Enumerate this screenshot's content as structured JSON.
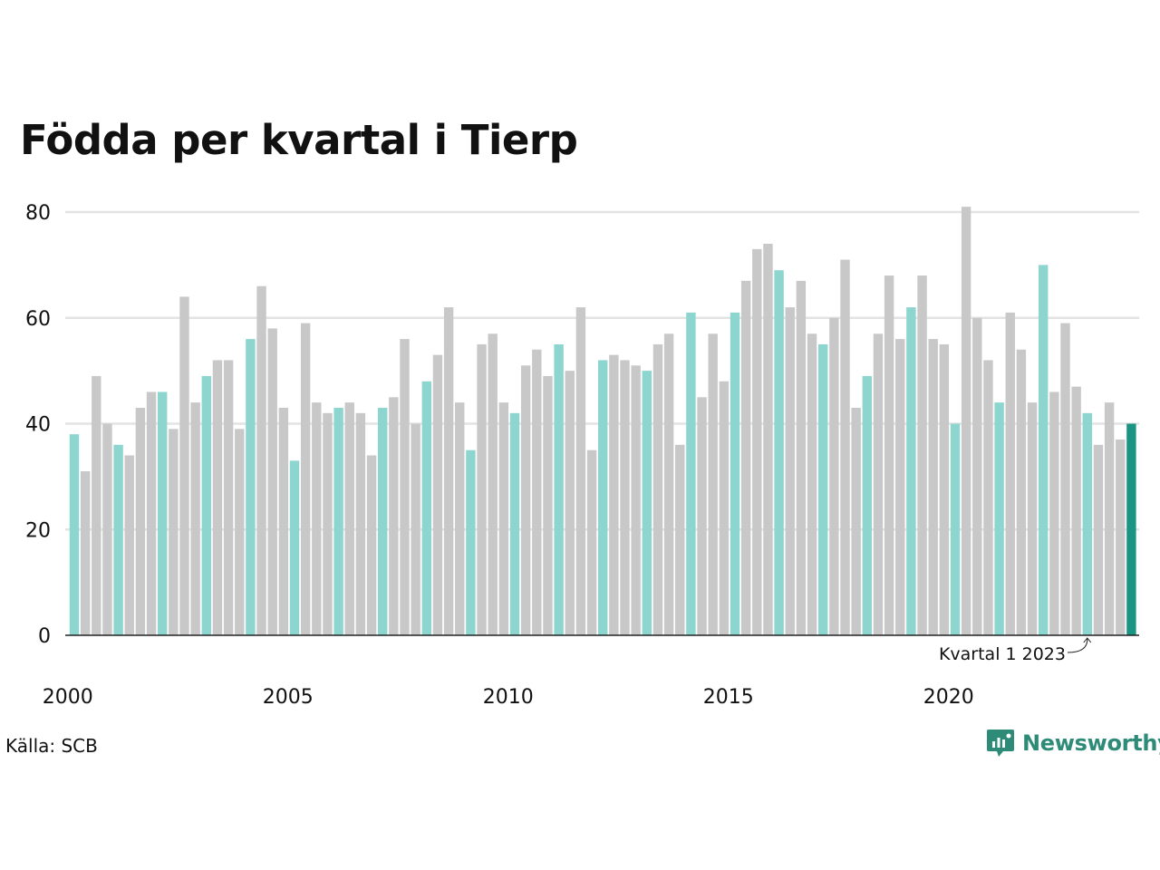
{
  "title": "Födda per kvartal i Tierp",
  "source": "Källa: SCB",
  "brand": "Newsworthy",
  "colors": {
    "q1": "#8dd5cf",
    "other": "#c8c8c8",
    "latest": "#1a9584",
    "grid": "#e3e3e3",
    "axis": "#222222"
  },
  "chart_data": {
    "type": "bar",
    "title": "Födda per kvartal i Tierp",
    "xlabel": "",
    "ylabel": "",
    "ylim": [
      0,
      80
    ],
    "y_ticks": [
      0,
      20,
      40,
      60,
      80
    ],
    "x_ticks": [
      "2000",
      "2005",
      "2010",
      "2015",
      "2020"
    ],
    "grid": true,
    "annotation": "Kvartal 1 2023",
    "categories": [
      "2000Q1",
      "2000Q2",
      "2000Q3",
      "2000Q4",
      "2001Q1",
      "2001Q2",
      "2001Q3",
      "2001Q4",
      "2002Q1",
      "2002Q2",
      "2002Q3",
      "2002Q4",
      "2003Q1",
      "2003Q2",
      "2003Q3",
      "2003Q4",
      "2004Q1",
      "2004Q2",
      "2004Q3",
      "2004Q4",
      "2005Q1",
      "2005Q2",
      "2005Q3",
      "2005Q4",
      "2006Q1",
      "2006Q2",
      "2006Q3",
      "2006Q4",
      "2007Q1",
      "2007Q2",
      "2007Q3",
      "2007Q4",
      "2008Q1",
      "2008Q2",
      "2008Q3",
      "2008Q4",
      "2009Q1",
      "2009Q2",
      "2009Q3",
      "2009Q4",
      "2010Q1",
      "2010Q2",
      "2010Q3",
      "2010Q4",
      "2011Q1",
      "2011Q2",
      "2011Q3",
      "2011Q4",
      "2012Q1",
      "2012Q2",
      "2012Q3",
      "2012Q4",
      "2013Q1",
      "2013Q2",
      "2013Q3",
      "2013Q4",
      "2014Q1",
      "2014Q2",
      "2014Q3",
      "2014Q4",
      "2015Q1",
      "2015Q2",
      "2015Q3",
      "2015Q4",
      "2016Q1",
      "2016Q2",
      "2016Q3",
      "2016Q4",
      "2017Q1",
      "2017Q2",
      "2017Q3",
      "2017Q4",
      "2018Q1",
      "2018Q2",
      "2018Q3",
      "2018Q4",
      "2019Q1",
      "2019Q2",
      "2019Q3",
      "2019Q4",
      "2020Q1",
      "2020Q2",
      "2020Q3",
      "2020Q4",
      "2021Q1",
      "2021Q2",
      "2021Q3",
      "2021Q4",
      "2022Q1",
      "2022Q2",
      "2022Q3",
      "2022Q4",
      "2023Q1",
      "2023Q2",
      "2023Q3",
      "2023Q4",
      "2024Q1"
    ],
    "values": [
      38,
      31,
      49,
      40,
      36,
      34,
      43,
      46,
      46,
      39,
      64,
      44,
      49,
      52,
      52,
      39,
      56,
      66,
      58,
      43,
      33,
      59,
      44,
      42,
      43,
      44,
      42,
      34,
      43,
      45,
      56,
      40,
      48,
      53,
      62,
      44,
      35,
      55,
      57,
      44,
      42,
      51,
      54,
      49,
      55,
      50,
      62,
      35,
      52,
      53,
      52,
      51,
      50,
      55,
      57,
      36,
      61,
      45,
      57,
      48,
      61,
      67,
      73,
      74,
      69,
      62,
      67,
      57,
      55,
      60,
      71,
      43,
      49,
      57,
      68,
      56,
      62,
      68,
      56,
      55,
      40,
      81,
      60,
      52,
      44,
      61,
      54,
      44,
      70,
      46,
      59,
      47,
      42,
      36,
      44,
      37,
      40
    ]
  }
}
